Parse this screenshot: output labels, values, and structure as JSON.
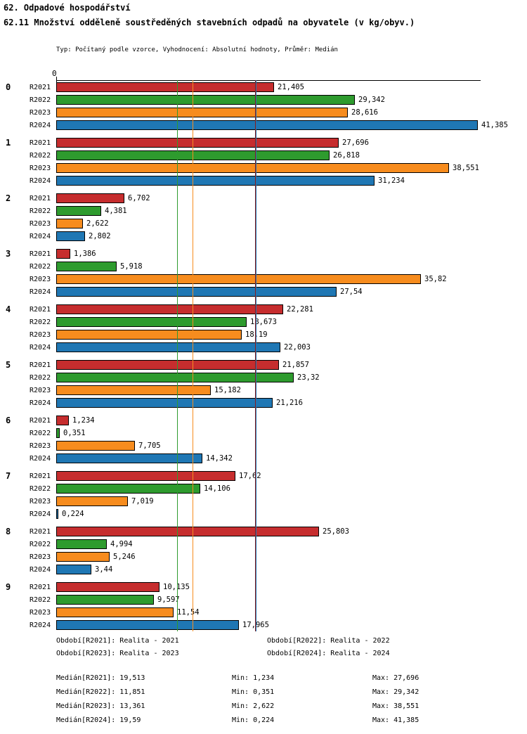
{
  "header": {
    "title": "62. Odpadové hospodářství",
    "subtitle": "62.11 Množství odděleně soustředěných stavebních odpadů na obyvatele (v kg/obyv.)",
    "meta": "Typ: Počítaný podle vzorce, Vyhodnocení: Absolutní hodnoty, Průměr: Medián"
  },
  "chart_data": {
    "type": "bar",
    "orientation": "horizontal",
    "title": "62.11 Množství odděleně soustředěných stavebních odpadů na obyvatele (v kg/obyv.)",
    "unit": "kg/obyv.",
    "axis_origin_label": "0",
    "xlim": [
      0,
      41.385
    ],
    "grid": false,
    "legend_position": "bottom",
    "categories": [
      "0",
      "1",
      "2",
      "3",
      "4",
      "5",
      "6",
      "7",
      "8",
      "9"
    ],
    "series": [
      {
        "name": "R2021",
        "color": "#c62d2e",
        "values": [
          21.405,
          27.696,
          6.702,
          1.386,
          22.281,
          21.857,
          1.234,
          17.62,
          25.803,
          10.135
        ],
        "labels": [
          "21,405",
          "27,696",
          "6,702",
          "1,386",
          "22,281",
          "21,857",
          "1,234",
          "17,62",
          "25,803",
          "10,135"
        ]
      },
      {
        "name": "R2022",
        "color": "#2e9b2e",
        "values": [
          29.342,
          26.818,
          4.381,
          5.918,
          18.673,
          23.32,
          0.351,
          14.106,
          4.994,
          9.597
        ],
        "labels": [
          "29,342",
          "26,818",
          "4,381",
          "5,918",
          "18,673",
          "23,32",
          "0,351",
          "14,106",
          "4,994",
          "9,597"
        ]
      },
      {
        "name": "R2023",
        "color": "#f78c1e",
        "values": [
          28.616,
          38.551,
          2.622,
          35.82,
          18.19,
          15.182,
          7.705,
          7.019,
          5.246,
          11.54
        ],
        "labels": [
          "28,616",
          "38,551",
          "2,622",
          "35,82",
          "18,19",
          "15,182",
          "7,705",
          "7,019",
          "5,246",
          "11,54"
        ]
      },
      {
        "name": "R2024",
        "color": "#1f77b4",
        "values": [
          41.385,
          31.234,
          2.802,
          27.54,
          22.003,
          21.216,
          14.342,
          0.224,
          3.44,
          17.965
        ],
        "labels": [
          "41,385",
          "31,234",
          "2,802",
          "27,54",
          "22,003",
          "21,216",
          "14,342",
          "0,224",
          "3,44",
          "17,965"
        ]
      }
    ],
    "median_lines": [
      {
        "series": "R2021",
        "value": 19.513,
        "color": "#8b1a1a"
      },
      {
        "series": "R2022",
        "value": 11.851,
        "color": "#2e9b2e"
      },
      {
        "series": "R2023",
        "value": 13.361,
        "color": "#f78c1e"
      },
      {
        "series": "R2024",
        "value": 19.59,
        "color": "#1f77b4"
      }
    ]
  },
  "legend": {
    "items": [
      {
        "label": "Období[R2021]: Realita - 2021"
      },
      {
        "label": "Období[R2022]: Realita - 2022"
      },
      {
        "label": "Období[R2023]: Realita - 2023"
      },
      {
        "label": "Období[R2024]: Realita - 2024"
      }
    ]
  },
  "stats": {
    "rows": [
      {
        "median": "Medián[R2021]: 19,513",
        "min": "Min: 1,234",
        "max": "Max: 27,696"
      },
      {
        "median": "Medián[R2022]: 11,851",
        "min": "Min: 0,351",
        "max": "Max: 29,342"
      },
      {
        "median": "Medián[R2023]: 13,361",
        "min": "Min: 2,622",
        "max": "Max: 38,551"
      },
      {
        "median": "Medián[R2024]: 19,59",
        "min": "Min: 0,224",
        "max": "Max: 41,385"
      }
    ]
  }
}
